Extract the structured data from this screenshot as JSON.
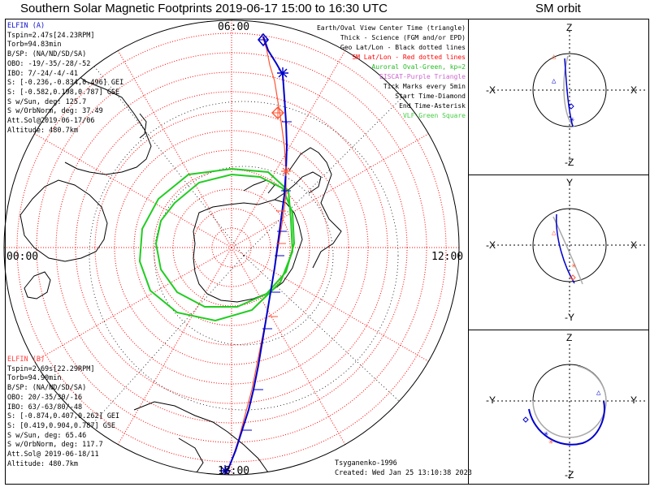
{
  "title": "Southern Solar Magnetic Footprints 2019-06-17 15:00 to 16:30 UTC",
  "side_title": "SM orbit",
  "map": {
    "time_labels": {
      "top": "06:00",
      "left": "00:00",
      "right": "12:00",
      "bottom": "18:00"
    },
    "credit": "Tsyganenko-1996",
    "created": "Created: Wed Jan 25 13:10:38 2023"
  },
  "legend": [
    {
      "text": "Earth/Oval View Center Time (triangle)",
      "color": "#000000"
    },
    {
      "text": "Thick - Science (FGM and/or EPD)",
      "color": "#000000"
    },
    {
      "text": "Geo Lat/Lon - Black dotted lines",
      "color": "#000000"
    },
    {
      "text": "SM Lat/Lon - Red dotted lines",
      "color": "#ff0000"
    },
    {
      "text": "Auroral Oval-Green, kp=2",
      "color": "#22bb22"
    },
    {
      "text": "EISCAT-Purple Triangle",
      "color": "#cc66cc"
    },
    {
      "text": "Tick Marks every 5min",
      "color": "#000000"
    },
    {
      "text": "Start Time-Diamond",
      "color": "#000000"
    },
    {
      "text": "End Time-Asterisk",
      "color": "#000000"
    },
    {
      "text": "VLF-Green Square",
      "color": "#44cc44"
    }
  ],
  "elfin_a": {
    "name": "ELFIN (A)",
    "color": "#1111cc",
    "lines": [
      "Tspin=2.47s[24.23RPM]",
      "Torb=94.83min",
      "B/SP: (NA/ND/SD/SA)",
      "OBO: -19/-35/-28/-52",
      "IBO: 7/-24/-4/-41",
      "S: [-0.236,-0.834,0.496] GEI",
      "S: [-0.582,0.198,0.787] GSE",
      "S w/Sun, deg: 125.7",
      "S w/OrbNorm, deg: 37.49",
      "Att.Sol@2019-06-17/06",
      "Altitude: 480.7km"
    ]
  },
  "elfin_b": {
    "name": "ELFIN (B)",
    "color": "#ff4444",
    "lines": [
      "Tspin=2.69s[22.29RPM]",
      "Torb=94.90min",
      "B/SP: (NA/ND/SD/SA)",
      "OBO: 20/-35/30/-16",
      "IBO: 63/-63/80/-48",
      "S: [-0.874,0.407,0.262] GEI",
      "S: [0.419,0.904,0.787] GSE",
      "S w/Sun, deg: 65.46",
      "S w/OrbNorm, deg: 117.7",
      "Att.Sol@ 2019-06-18/11",
      "Altitude: 480.7km"
    ]
  },
  "orbit_panels": [
    {
      "top": "Z",
      "bottom": "-Z",
      "left": "-X",
      "right": "X"
    },
    {
      "top": "Y",
      "bottom": "-Y",
      "left": "-X",
      "right": "X"
    },
    {
      "top": "Z",
      "bottom": "-Z",
      "left": "-Y",
      "right": "Y"
    }
  ],
  "colors": {
    "elfin_a_track": "#0000cc",
    "elfin_b_track": "#ff5533",
    "sm_grid": "#ff0000",
    "geo_grid": "#000000",
    "auroral_oval": "#22cc22"
  }
}
